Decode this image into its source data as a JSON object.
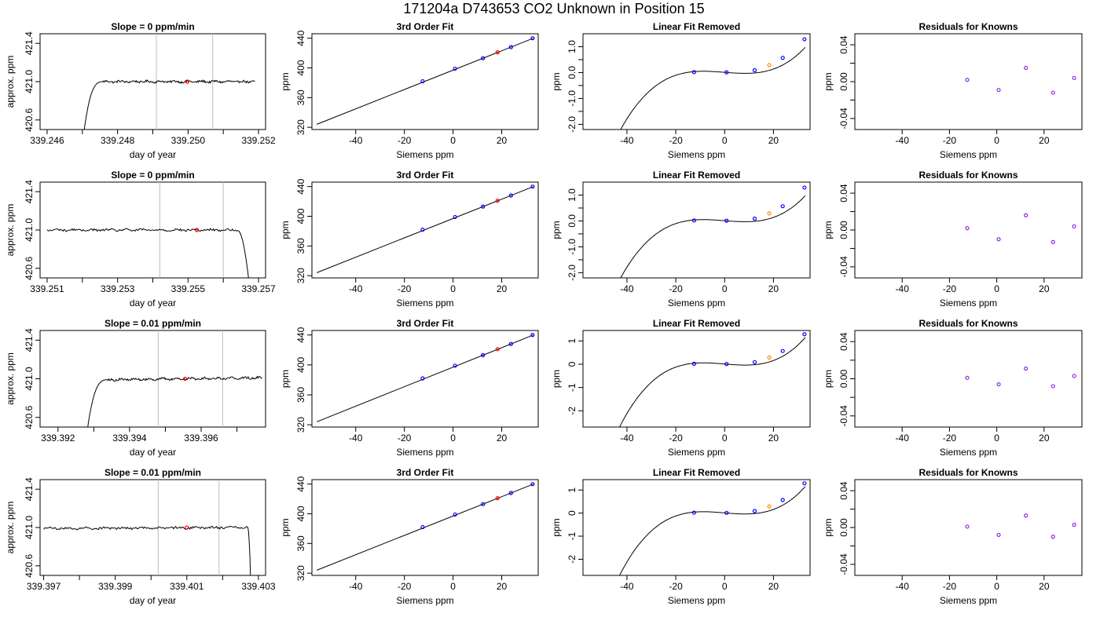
{
  "page_title": "171204a      D743653    CO2 Unknown in Position  15",
  "colors": {
    "trace": "#000000",
    "marker_red": "#ff0000",
    "marker_blue": "#0000ff",
    "marker_orange": "#ff8c00",
    "marker_purple": "#8a2be2",
    "window_line": "#bebebe"
  },
  "chart_data": [
    {
      "type": "line",
      "row": 1,
      "panel": "time-series",
      "title": "Slope =  0  ppm/min",
      "xlabel": "day of year",
      "ylabel": "approx. ppm",
      "xlim": [
        339.2458,
        339.2522
      ],
      "ylim": [
        420.5,
        421.5
      ],
      "xticks": [
        339.246,
        339.247,
        339.248,
        339.249,
        339.25,
        339.251,
        339.252
      ],
      "xtick_labels": [
        "339.246",
        "",
        "339.248",
        "",
        "339.250",
        "",
        "339.252"
      ],
      "yticks": [
        420.6,
        421.0,
        421.4
      ],
      "ytick_labels": [
        "420.6",
        "421.0",
        "421.4"
      ],
      "rise": {
        "x0": 339.24695,
        "x1": 339.2476,
        "plateau": 421.0
      },
      "trace_x": [
        339.2476,
        339.2519
      ],
      "trace_level": 421.0,
      "trace_end_level": 421.0,
      "window_lines": [
        339.2491,
        339.2507
      ],
      "marker": {
        "x": 339.24998,
        "y": 421.0
      }
    },
    {
      "type": "scatter",
      "row": 1,
      "panel": "fit",
      "title": "3rd Order Fit",
      "xlabel": "Siemens ppm",
      "ylabel": "ppm",
      "xlim": [
        -58,
        35
      ],
      "ylim": [
        317,
        446
      ],
      "xticks": [
        -40,
        -20,
        0,
        20
      ],
      "yticks": [
        320,
        360,
        400,
        440
      ],
      "curve": {
        "x0": -56,
        "x1": 33,
        "y0": 324,
        "y1": 440
      },
      "points": [
        {
          "x": -12.5,
          "y": 382,
          "color": "#0000ff"
        },
        {
          "x": 0.8,
          "y": 399,
          "color": "#0000ff"
        },
        {
          "x": 12.3,
          "y": 413,
          "color": "#0000ff"
        },
        {
          "x": 18.3,
          "y": 421,
          "color": "#ff0000"
        },
        {
          "x": 23.8,
          "y": 428,
          "color": "#0000ff"
        },
        {
          "x": 32.7,
          "y": 440,
          "color": "#0000ff"
        }
      ]
    },
    {
      "type": "scatter",
      "row": 1,
      "panel": "linear-removed",
      "title": "Linear Fit Removed",
      "xlabel": "Siemens ppm",
      "ylabel": "ppm",
      "xlim": [
        -58,
        35
      ],
      "ylim": [
        -2.2,
        1.5
      ],
      "xticks": [
        -40,
        -20,
        0,
        20
      ],
      "yticks": [
        -2.0,
        -1.0,
        0.0,
        1.0
      ],
      "ytick_labels": [
        "-2.0",
        "-1.0",
        "0.0",
        "1.0"
      ],
      "minor_yticks": [
        -1.5,
        -0.5,
        0.5
      ],
      "curve": {
        "c3": 3.3e-05,
        "c2": 1.7e-05,
        "c1": -0.0072,
        "x0": -56,
        "x1": 33
      },
      "points": [
        {
          "x": -12.5,
          "y": 0.02,
          "color": "#0000ff"
        },
        {
          "x": 0.8,
          "y": 0.01,
          "color": "#0000ff"
        },
        {
          "x": 12.3,
          "y": 0.09,
          "color": "#0000ff"
        },
        {
          "x": 18.3,
          "y": 0.29,
          "color": "#ff8c00"
        },
        {
          "x": 23.8,
          "y": 0.57,
          "color": "#0000ff"
        },
        {
          "x": 32.7,
          "y": 1.29,
          "color": "#0000ff"
        }
      ]
    },
    {
      "type": "scatter",
      "row": 1,
      "panel": "residuals",
      "title": "Residuals for Knowns",
      "xlabel": "Siemens ppm",
      "ylabel": "ppm",
      "xlim": [
        -60,
        36
      ],
      "ylim": [
        -0.052,
        0.052
      ],
      "xticks": [
        -40,
        -20,
        0,
        20
      ],
      "yticks": [
        -0.04,
        0.0,
        0.04
      ],
      "ytick_labels": [
        "-0.04",
        "0.00",
        "0.04"
      ],
      "minor_yticks": [
        -0.02,
        0.02
      ],
      "points": [
        {
          "x": -12.5,
          "y": 0.002,
          "color": "#8a2be2"
        },
        {
          "x": 0.8,
          "y": -0.009,
          "color": "#8a2be2"
        },
        {
          "x": 12.3,
          "y": 0.015,
          "color": "#8a2be2"
        },
        {
          "x": 23.8,
          "y": -0.012,
          "color": "#8a2be2"
        },
        {
          "x": 32.7,
          "y": 0.004,
          "color": "#8a2be2"
        }
      ]
    },
    {
      "type": "line",
      "row": 2,
      "panel": "time-series",
      "title": "Slope =  0  ppm/min",
      "xlabel": "day of year",
      "ylabel": "approx. ppm",
      "xlim": [
        339.2508,
        339.2572
      ],
      "ylim": [
        420.5,
        421.5
      ],
      "xticks": [
        339.251,
        339.252,
        339.253,
        339.254,
        339.255,
        339.256,
        339.257
      ],
      "xtick_labels": [
        "339.251",
        "",
        "339.253",
        "",
        "339.255",
        "",
        "339.257"
      ],
      "yticks": [
        420.6,
        421.0,
        421.4
      ],
      "ytick_labels": [
        "420.6",
        "421.0",
        "421.4"
      ],
      "trace_x": [
        339.251,
        339.2564
      ],
      "trace_level": 421.0,
      "trace_end_level": 421.0,
      "fall": {
        "x0": 339.2564,
        "x1": 339.2568
      },
      "window_lines": [
        339.2542,
        339.256
      ],
      "marker": {
        "x": 339.25525,
        "y": 421.0
      }
    },
    {
      "type": "scatter",
      "row": 2,
      "panel": "fit",
      "title": "3rd Order Fit",
      "xlabel": "Siemens ppm",
      "ylabel": "ppm",
      "xlim": [
        -58,
        35
      ],
      "ylim": [
        317,
        446
      ],
      "xticks": [
        -40,
        -20,
        0,
        20
      ],
      "yticks": [
        320,
        360,
        400,
        440
      ],
      "curve": {
        "x0": -56,
        "x1": 33,
        "y0": 324,
        "y1": 440
      },
      "points": [
        {
          "x": -12.5,
          "y": 382,
          "color": "#0000ff"
        },
        {
          "x": 0.8,
          "y": 399,
          "color": "#0000ff"
        },
        {
          "x": 12.3,
          "y": 413,
          "color": "#0000ff"
        },
        {
          "x": 18.3,
          "y": 421,
          "color": "#ff0000"
        },
        {
          "x": 23.8,
          "y": 428,
          "color": "#0000ff"
        },
        {
          "x": 32.7,
          "y": 440,
          "color": "#0000ff"
        }
      ]
    },
    {
      "type": "scatter",
      "row": 2,
      "panel": "linear-removed",
      "title": "Linear Fit Removed",
      "xlabel": "Siemens ppm",
      "ylabel": "ppm",
      "xlim": [
        -58,
        35
      ],
      "ylim": [
        -2.2,
        1.5
      ],
      "xticks": [
        -40,
        -20,
        0,
        20
      ],
      "yticks": [
        -2.0,
        -1.0,
        0.0,
        1.0
      ],
      "ytick_labels": [
        "-2.0",
        "-1.0",
        "0.0",
        "1.0"
      ],
      "minor_yticks": [
        -1.5,
        -0.5,
        0.5
      ],
      "curve": {
        "c3": 3.3e-05,
        "c2": 1.7e-05,
        "c1": -0.0072,
        "x0": -56,
        "x1": 33
      },
      "points": [
        {
          "x": -12.5,
          "y": 0.02,
          "color": "#0000ff"
        },
        {
          "x": 0.8,
          "y": 0.01,
          "color": "#0000ff"
        },
        {
          "x": 12.3,
          "y": 0.09,
          "color": "#0000ff"
        },
        {
          "x": 18.3,
          "y": 0.29,
          "color": "#ff8c00"
        },
        {
          "x": 23.8,
          "y": 0.57,
          "color": "#0000ff"
        },
        {
          "x": 32.7,
          "y": 1.29,
          "color": "#0000ff"
        }
      ]
    },
    {
      "type": "scatter",
      "row": 2,
      "panel": "residuals",
      "title": "Residuals for Knowns",
      "xlabel": "Siemens ppm",
      "ylabel": "ppm",
      "xlim": [
        -60,
        36
      ],
      "ylim": [
        -0.052,
        0.052
      ],
      "xticks": [
        -40,
        -20,
        0,
        20
      ],
      "yticks": [
        -0.04,
        0.0,
        0.04
      ],
      "ytick_labels": [
        "-0.04",
        "0.00",
        "0.04"
      ],
      "minor_yticks": [
        -0.02,
        0.02
      ],
      "points": [
        {
          "x": -12.5,
          "y": 0.002,
          "color": "#8a2be2"
        },
        {
          "x": 0.8,
          "y": -0.01,
          "color": "#8a2be2"
        },
        {
          "x": 12.3,
          "y": 0.016,
          "color": "#8a2be2"
        },
        {
          "x": 23.8,
          "y": -0.013,
          "color": "#8a2be2"
        },
        {
          "x": 32.7,
          "y": 0.004,
          "color": "#8a2be2"
        }
      ]
    },
    {
      "type": "line",
      "row": 3,
      "panel": "time-series",
      "title": "Slope =  0.01  ppm/min",
      "xlabel": "day of year",
      "ylabel": "approx. ppm",
      "xlim": [
        339.3915,
        339.3978
      ],
      "ylim": [
        420.5,
        421.5
      ],
      "xticks": [
        339.392,
        339.393,
        339.394,
        339.395,
        339.396,
        339.397
      ],
      "xtick_labels": [
        "339.392",
        "",
        "339.394",
        "",
        "339.396",
        ""
      ],
      "yticks": [
        420.6,
        421.0,
        421.4
      ],
      "ytick_labels": [
        "420.6",
        "421.0",
        "421.4"
      ],
      "rise": {
        "x0": 339.39272,
        "x1": 339.3934,
        "plateau": 420.99
      },
      "trace_x": [
        339.3934,
        339.3977
      ],
      "trace_level": 420.99,
      "trace_end_level": 421.01,
      "window_lines": [
        339.3948,
        339.3966
      ],
      "marker": {
        "x": 339.39555,
        "y": 421.0
      }
    },
    {
      "type": "scatter",
      "row": 3,
      "panel": "fit",
      "title": "3rd Order Fit",
      "xlabel": "Siemens ppm",
      "ylabel": "ppm",
      "xlim": [
        -58,
        35
      ],
      "ylim": [
        317,
        446
      ],
      "xticks": [
        -40,
        -20,
        0,
        20
      ],
      "yticks": [
        320,
        360,
        400,
        440
      ],
      "curve": {
        "x0": -56,
        "x1": 33,
        "y0": 324,
        "y1": 440
      },
      "points": [
        {
          "x": -12.5,
          "y": 382,
          "color": "#0000ff"
        },
        {
          "x": 0.8,
          "y": 399,
          "color": "#0000ff"
        },
        {
          "x": 12.3,
          "y": 413,
          "color": "#0000ff"
        },
        {
          "x": 18.3,
          "y": 421,
          "color": "#ff0000"
        },
        {
          "x": 23.8,
          "y": 428,
          "color": "#0000ff"
        },
        {
          "x": 32.7,
          "y": 440,
          "color": "#0000ff"
        }
      ]
    },
    {
      "type": "scatter",
      "row": 3,
      "panel": "linear-removed",
      "title": "Linear Fit Removed",
      "xlabel": "Siemens ppm",
      "ylabel": "ppm",
      "xlim": [
        -58,
        35
      ],
      "ylim": [
        -2.7,
        1.45
      ],
      "xticks": [
        -40,
        -20,
        0,
        20
      ],
      "yticks": [
        -2,
        -1,
        0,
        1
      ],
      "ytick_labels": [
        "-2",
        "-1",
        "0",
        "1"
      ],
      "minor_yticks": [],
      "curve": {
        "c3": 3.9e-05,
        "c2": 1.7e-05,
        "c1": -0.0085,
        "x0": -56,
        "x1": 33
      },
      "points": [
        {
          "x": -12.5,
          "y": 0.02,
          "color": "#0000ff"
        },
        {
          "x": 0.8,
          "y": 0.01,
          "color": "#0000ff"
        },
        {
          "x": 12.3,
          "y": 0.09,
          "color": "#0000ff"
        },
        {
          "x": 18.3,
          "y": 0.29,
          "color": "#ff8c00"
        },
        {
          "x": 23.8,
          "y": 0.57,
          "color": "#0000ff"
        },
        {
          "x": 32.7,
          "y": 1.29,
          "color": "#0000ff"
        }
      ]
    },
    {
      "type": "scatter",
      "row": 3,
      "panel": "residuals",
      "title": "Residuals for Knowns",
      "xlabel": "Siemens ppm",
      "ylabel": "ppm",
      "xlim": [
        -60,
        36
      ],
      "ylim": [
        -0.052,
        0.052
      ],
      "xticks": [
        -40,
        -20,
        0,
        20
      ],
      "yticks": [
        -0.04,
        0.0,
        0.04
      ],
      "ytick_labels": [
        "-0.04",
        "0.00",
        "0.04"
      ],
      "minor_yticks": [
        -0.02,
        0.02
      ],
      "points": [
        {
          "x": -12.5,
          "y": 0.001,
          "color": "#8a2be2"
        },
        {
          "x": 0.8,
          "y": -0.006,
          "color": "#8a2be2"
        },
        {
          "x": 12.3,
          "y": 0.011,
          "color": "#8a2be2"
        },
        {
          "x": 23.8,
          "y": -0.008,
          "color": "#8a2be2"
        },
        {
          "x": 32.7,
          "y": 0.003,
          "color": "#8a2be2"
        }
      ]
    },
    {
      "type": "line",
      "row": 4,
      "panel": "time-series",
      "title": "Slope =  0.01  ppm/min",
      "xlabel": "day of year",
      "ylabel": "approx. ppm",
      "xlim": [
        339.3969,
        339.4032
      ],
      "ylim": [
        420.5,
        421.5
      ],
      "xticks": [
        339.397,
        339.398,
        339.399,
        339.4,
        339.401,
        339.402,
        339.403
      ],
      "xtick_labels": [
        "339.397",
        "",
        "339.399",
        "",
        "339.401",
        "",
        "339.403"
      ],
      "yticks": [
        420.6,
        421.0,
        421.4
      ],
      "ytick_labels": [
        "420.6",
        "421.0",
        "421.4"
      ],
      "trace_x": [
        339.397,
        339.4027
      ],
      "trace_level": 420.99,
      "trace_end_level": 421.0,
      "fall": {
        "x0": 339.4027,
        "x1": 339.4028
      },
      "window_lines": [
        339.4002,
        339.4019
      ],
      "marker": {
        "x": 339.401,
        "y": 421.0
      }
    },
    {
      "type": "scatter",
      "row": 4,
      "panel": "fit",
      "title": "3rd Order Fit",
      "xlabel": "Siemens ppm",
      "ylabel": "ppm",
      "xlim": [
        -58,
        35
      ],
      "ylim": [
        317,
        446
      ],
      "xticks": [
        -40,
        -20,
        0,
        20
      ],
      "yticks": [
        320,
        360,
        400,
        440
      ],
      "curve": {
        "x0": -56,
        "x1": 33,
        "y0": 324,
        "y1": 440
      },
      "points": [
        {
          "x": -12.5,
          "y": 382,
          "color": "#0000ff"
        },
        {
          "x": 0.8,
          "y": 399,
          "color": "#0000ff"
        },
        {
          "x": 12.3,
          "y": 413,
          "color": "#0000ff"
        },
        {
          "x": 18.3,
          "y": 421,
          "color": "#ff0000"
        },
        {
          "x": 23.8,
          "y": 428,
          "color": "#0000ff"
        },
        {
          "x": 32.7,
          "y": 440,
          "color": "#0000ff"
        }
      ]
    },
    {
      "type": "scatter",
      "row": 4,
      "panel": "linear-removed",
      "title": "Linear Fit Removed",
      "xlabel": "Siemens ppm",
      "ylabel": "ppm",
      "xlim": [
        -58,
        35
      ],
      "ylim": [
        -2.7,
        1.45
      ],
      "xticks": [
        -40,
        -20,
        0,
        20
      ],
      "yticks": [
        -2,
        -1,
        0,
        1
      ],
      "ytick_labels": [
        "-2",
        "-1",
        "0",
        "1"
      ],
      "minor_yticks": [],
      "curve": {
        "c3": 3.9e-05,
        "c2": 1.7e-05,
        "c1": -0.0085,
        "x0": -56,
        "x1": 33
      },
      "points": [
        {
          "x": -12.5,
          "y": 0.02,
          "color": "#0000ff"
        },
        {
          "x": 0.8,
          "y": 0.01,
          "color": "#0000ff"
        },
        {
          "x": 12.3,
          "y": 0.09,
          "color": "#0000ff"
        },
        {
          "x": 18.3,
          "y": 0.29,
          "color": "#ff8c00"
        },
        {
          "x": 23.8,
          "y": 0.57,
          "color": "#0000ff"
        },
        {
          "x": 32.7,
          "y": 1.29,
          "color": "#0000ff"
        }
      ]
    },
    {
      "type": "scatter",
      "row": 4,
      "panel": "residuals",
      "title": "Residuals for Knowns",
      "xlabel": "Siemens ppm",
      "ylabel": "ppm",
      "xlim": [
        -60,
        36
      ],
      "ylim": [
        -0.052,
        0.052
      ],
      "xticks": [
        -40,
        -20,
        0,
        20
      ],
      "yticks": [
        -0.04,
        0.0,
        0.04
      ],
      "ytick_labels": [
        "-0.04",
        "0.00",
        "0.04"
      ],
      "minor_yticks": [
        -0.02,
        0.02
      ],
      "points": [
        {
          "x": -12.5,
          "y": 0.001,
          "color": "#8a2be2"
        },
        {
          "x": 0.8,
          "y": -0.008,
          "color": "#8a2be2"
        },
        {
          "x": 12.3,
          "y": 0.013,
          "color": "#8a2be2"
        },
        {
          "x": 23.8,
          "y": -0.01,
          "color": "#8a2be2"
        },
        {
          "x": 32.7,
          "y": 0.003,
          "color": "#8a2be2"
        }
      ]
    }
  ]
}
